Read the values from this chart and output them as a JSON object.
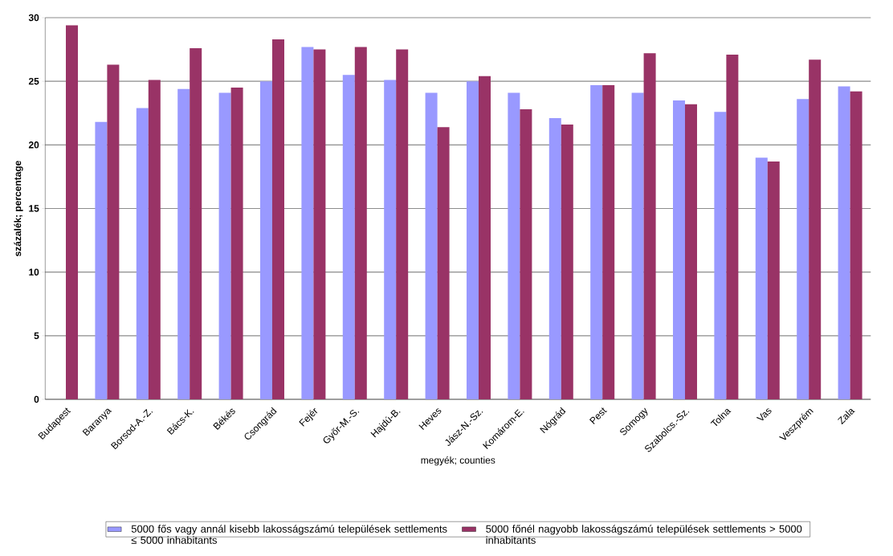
{
  "chart_data": {
    "type": "bar",
    "xlabel": "megyék; counties",
    "ylabel": "százalék; percentage",
    "categories": [
      "Budapest",
      "Baranya",
      "Borsod-A.-Z.",
      "Bács-K.",
      "Békés",
      "Csongrád",
      "Fejér",
      "Győr-M.-S.",
      "Hajdú-B.",
      "Heves",
      "Jász-N.-Sz.",
      "Komárom-E.",
      "Nógrád",
      "Pest",
      "Somogy",
      "Szabolcs.-Sz.",
      "Tolna",
      "Vas",
      "Veszprém",
      "Zala"
    ],
    "series": [
      {
        "name": "5000 fős vagy annál kisebb lakosságszámú települések settlements ≤ 5000 inhabitants",
        "color": "#9999ff",
        "values": [
          null,
          21.8,
          22.9,
          24.4,
          24.1,
          25.0,
          27.7,
          25.5,
          25.1,
          24.1,
          25.0,
          24.1,
          22.1,
          24.7,
          24.1,
          23.5,
          22.6,
          19.0,
          23.6,
          24.6
        ]
      },
      {
        "name": "5000 főnél nagyobb lakosságszámú települések settlements > 5000 inhabitants",
        "color": "#993366",
        "values": [
          29.4,
          26.3,
          25.1,
          27.6,
          24.5,
          28.3,
          27.5,
          27.7,
          27.5,
          21.4,
          25.4,
          22.8,
          21.6,
          24.7,
          27.2,
          23.2,
          27.1,
          18.7,
          26.7,
          24.2
        ]
      }
    ],
    "ylim": [
      0,
      30
    ],
    "yticks": [
      0,
      5,
      10,
      15,
      20,
      25,
      30
    ],
    "grid": "y",
    "legend": "bottom"
  }
}
